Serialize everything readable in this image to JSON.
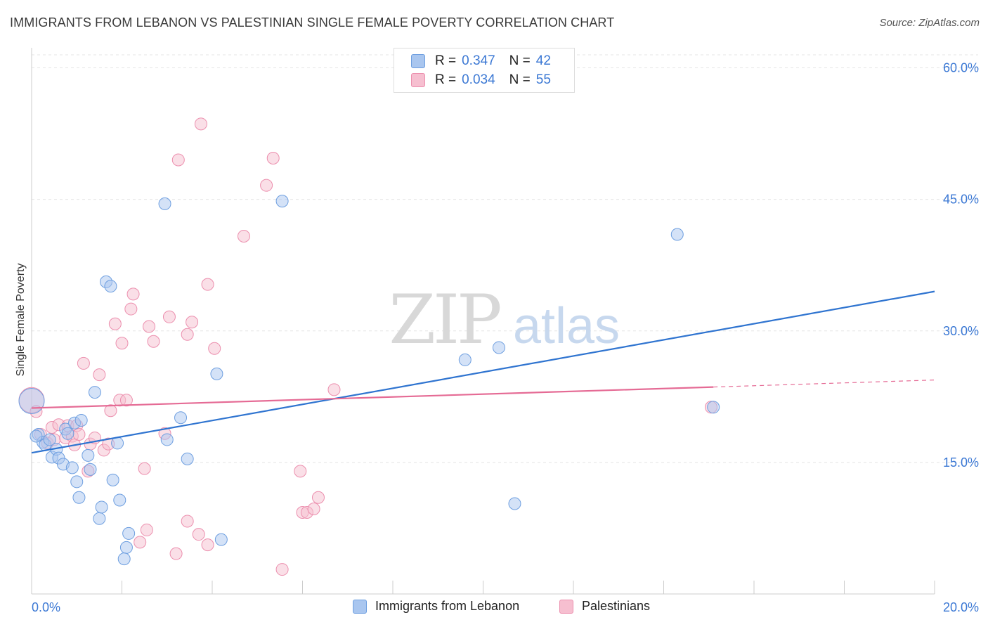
{
  "header": {
    "title": "IMMIGRANTS FROM LEBANON VS PALESTINIAN SINGLE FEMALE POVERTY CORRELATION CHART",
    "source": "Source: ZipAtlas.com"
  },
  "watermark": {
    "zip": "ZIP",
    "atlas": "atlas"
  },
  "legend": {
    "r_label": "R =",
    "n_label": "N =",
    "series1": {
      "r": "0.347",
      "n": "42"
    },
    "series2": {
      "r": "0.034",
      "n": "55"
    }
  },
  "colors": {
    "blue_fill": "#a9c6ef",
    "blue_stroke": "#6e9fe0",
    "blue_line": "#2f74d0",
    "pink_fill": "#f6bfd0",
    "pink_stroke": "#ec8fae",
    "pink_line": "#e56b95",
    "tick_text": "#3b78d4"
  },
  "chart_data": {
    "type": "scatter",
    "title": "IMMIGRANTS FROM LEBANON VS PALESTINIAN SINGLE FEMALE POVERTY CORRELATION CHART",
    "xlabel": "",
    "ylabel": "Single Female Poverty",
    "xlim": [
      0,
      20
    ],
    "ylim": [
      0,
      62
    ],
    "x_tick_labels": [
      "0.0%",
      "20.0%"
    ],
    "y_ticks": [
      15,
      30,
      45,
      60
    ],
    "y_tick_labels": [
      "15.0%",
      "30.0%",
      "45.0%",
      "60.0%"
    ],
    "grid": true,
    "legend_position": "top-center",
    "series": [
      {
        "name": "Immigrants from Lebanon",
        "color": "#6e9fe0",
        "points": [
          [
            0.0,
            22.0
          ],
          [
            0.15,
            18.2
          ],
          [
            0.25,
            17.3
          ],
          [
            0.3,
            17.0
          ],
          [
            0.4,
            17.6
          ],
          [
            0.45,
            15.6
          ],
          [
            0.55,
            16.5
          ],
          [
            0.6,
            15.5
          ],
          [
            0.7,
            14.8
          ],
          [
            0.75,
            18.8
          ],
          [
            0.8,
            18.3
          ],
          [
            0.9,
            14.4
          ],
          [
            0.95,
            19.5
          ],
          [
            1.0,
            12.8
          ],
          [
            1.05,
            11.0
          ],
          [
            1.1,
            19.8
          ],
          [
            1.25,
            15.8
          ],
          [
            1.3,
            14.2
          ],
          [
            1.4,
            23.0
          ],
          [
            1.5,
            8.6
          ],
          [
            1.55,
            9.9
          ],
          [
            1.65,
            35.6
          ],
          [
            1.75,
            35.1
          ],
          [
            1.8,
            13.0
          ],
          [
            1.9,
            17.2
          ],
          [
            1.95,
            10.7
          ],
          [
            2.1,
            5.3
          ],
          [
            2.15,
            6.9
          ],
          [
            2.05,
            4.0
          ],
          [
            2.95,
            44.5
          ],
          [
            3.0,
            17.6
          ],
          [
            3.3,
            20.1
          ],
          [
            3.45,
            15.4
          ],
          [
            4.1,
            25.1
          ],
          [
            4.2,
            6.2
          ],
          [
            5.55,
            44.8
          ],
          [
            9.6,
            26.7
          ],
          [
            10.35,
            28.1
          ],
          [
            10.7,
            10.3
          ],
          [
            14.3,
            41.0
          ],
          [
            15.1,
            21.3
          ],
          [
            0.1,
            18.0
          ]
        ],
        "trend": {
          "x": [
            0,
            20
          ],
          "y": [
            16.1,
            34.5
          ]
        }
      },
      {
        "name": "Palestinians",
        "color": "#ec8fae",
        "points": [
          [
            0.0,
            22.1
          ],
          [
            0.1,
            20.8
          ],
          [
            0.2,
            18.2
          ],
          [
            0.35,
            17.2
          ],
          [
            0.45,
            19.0
          ],
          [
            0.5,
            17.6
          ],
          [
            0.6,
            19.3
          ],
          [
            0.75,
            17.8
          ],
          [
            0.8,
            19.2
          ],
          [
            0.9,
            18.0
          ],
          [
            0.95,
            17.0
          ],
          [
            1.0,
            19.2
          ],
          [
            1.05,
            18.2
          ],
          [
            1.15,
            26.3
          ],
          [
            1.25,
            14.0
          ],
          [
            1.3,
            17.1
          ],
          [
            1.4,
            17.8
          ],
          [
            1.5,
            25.0
          ],
          [
            1.6,
            16.4
          ],
          [
            1.7,
            17.1
          ],
          [
            1.75,
            20.9
          ],
          [
            1.85,
            30.8
          ],
          [
            1.95,
            22.1
          ],
          [
            2.0,
            28.6
          ],
          [
            2.1,
            22.1
          ],
          [
            2.2,
            32.5
          ],
          [
            2.25,
            34.2
          ],
          [
            2.4,
            5.9
          ],
          [
            2.5,
            14.3
          ],
          [
            2.55,
            7.3
          ],
          [
            2.6,
            30.5
          ],
          [
            2.7,
            28.8
          ],
          [
            2.95,
            18.3
          ],
          [
            3.05,
            31.6
          ],
          [
            3.2,
            4.6
          ],
          [
            3.25,
            49.5
          ],
          [
            3.45,
            8.3
          ],
          [
            3.45,
            29.6
          ],
          [
            3.55,
            31.0
          ],
          [
            3.7,
            6.8
          ],
          [
            3.75,
            53.6
          ],
          [
            3.9,
            5.6
          ],
          [
            3.9,
            35.3
          ],
          [
            4.05,
            28.0
          ],
          [
            4.7,
            40.8
          ],
          [
            5.2,
            46.6
          ],
          [
            5.35,
            49.7
          ],
          [
            5.55,
            2.8
          ],
          [
            5.95,
            14.0
          ],
          [
            6.0,
            9.3
          ],
          [
            6.1,
            9.3
          ],
          [
            6.25,
            9.7
          ],
          [
            6.35,
            11.0
          ],
          [
            6.7,
            23.3
          ],
          [
            15.05,
            21.3
          ]
        ],
        "trend": {
          "x": [
            0,
            15.1
          ],
          "y": [
            21.2,
            23.6
          ]
        },
        "trend_dashed": {
          "x": [
            15.1,
            20
          ],
          "y": [
            23.6,
            24.4
          ]
        }
      }
    ]
  },
  "axis": {
    "y_title": "Single Female Poverty",
    "x_min_label": "0.0%",
    "x_max_label": "20.0%"
  },
  "bottom_legend": {
    "item1": "Immigrants from Lebanon",
    "item2": "Palestinians"
  }
}
